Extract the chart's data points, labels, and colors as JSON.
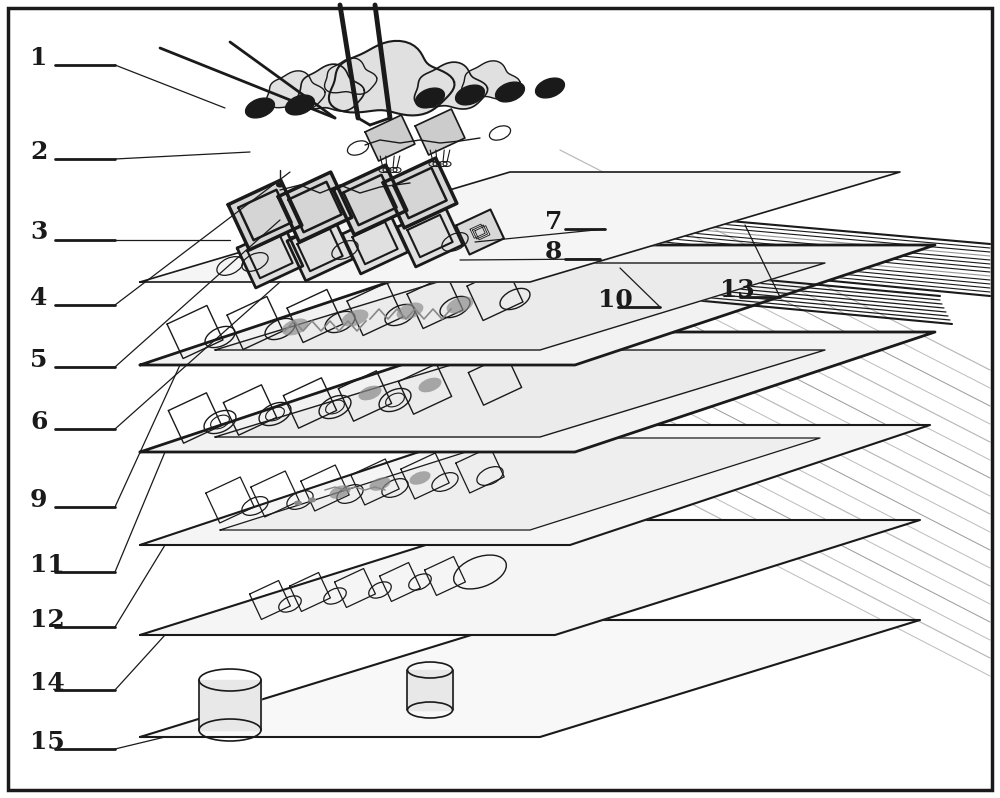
{
  "bg_color": "#ffffff",
  "line_color": "#1a1a1a",
  "gray_color": "#999999",
  "light_gray": "#bbbbbb",
  "figure_width": 10.0,
  "figure_height": 7.98,
  "dpi": 100
}
